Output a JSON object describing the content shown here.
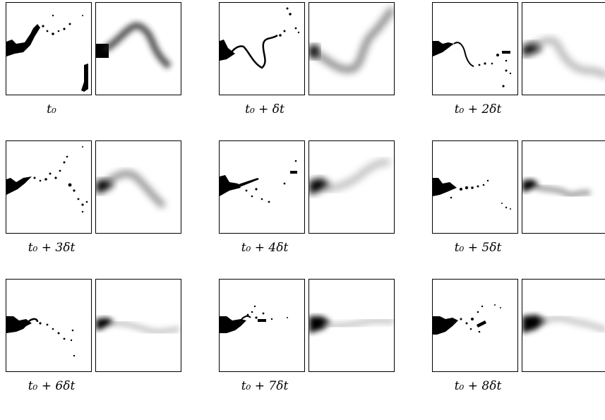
{
  "figure": {
    "panels": [
      {
        "caption": "t₀"
      },
      {
        "caption": "t₀ + δt"
      },
      {
        "caption": "t₀ + 2δt"
      },
      {
        "caption": "t₀ + 3δt"
      },
      {
        "caption": "t₀ + 4δt"
      },
      {
        "caption": "t₀ + 5δt"
      },
      {
        "caption": "t₀ + 6δt"
      },
      {
        "caption": "t₀ + 7δt"
      },
      {
        "caption": "t₀ + 8δt"
      }
    ]
  }
}
